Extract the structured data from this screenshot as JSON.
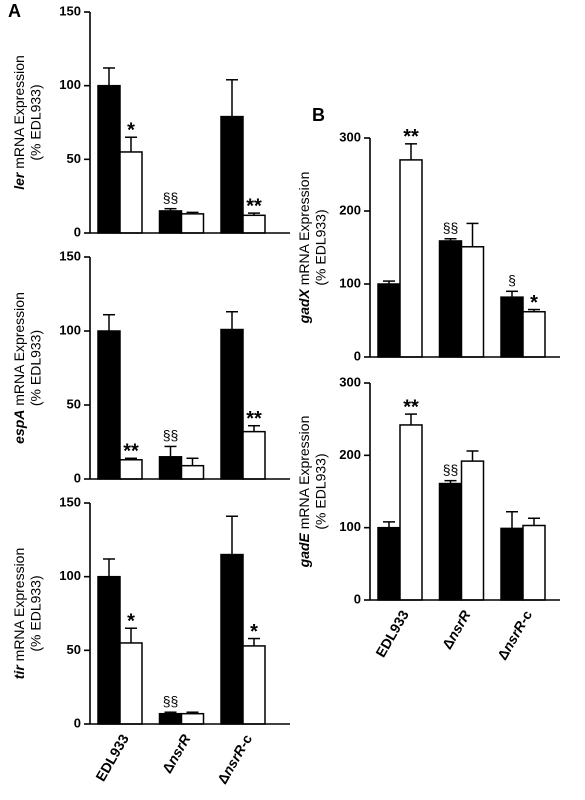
{
  "panel_labels": [
    "A",
    "B"
  ],
  "chart_data": [
    {
      "type": "bar",
      "ylabel_gene": "ler",
      "ylabel": "mRNA Expression",
      "ylabel2": "(% EDL933)",
      "categories": [
        null,
        null,
        null
      ],
      "ylim": [
        0,
        150
      ],
      "yticks": [
        0,
        50,
        100,
        150
      ],
      "series": [
        {
          "color": "#000000",
          "values": [
            100,
            15,
            79
          ],
          "errors": [
            12,
            1.5,
            25
          ]
        },
        {
          "color": "#ffffff",
          "values": [
            55,
            13,
            12
          ],
          "errors": [
            10,
            1,
            1.5
          ]
        }
      ],
      "annotations": [
        {
          "text": "*",
          "series": 1,
          "index": 0
        },
        {
          "text": "§§",
          "series": 0,
          "index": 1
        },
        {
          "text": "**",
          "series": 1,
          "index": 2
        }
      ]
    },
    {
      "type": "bar",
      "ylabel_gene": "espA",
      "ylabel": "mRNA Expression",
      "ylabel2": "(% EDL933)",
      "categories": [
        null,
        null,
        null
      ],
      "ylim": [
        0,
        150
      ],
      "yticks": [
        0,
        50,
        100,
        150
      ],
      "series": [
        {
          "color": "#000000",
          "values": [
            100,
            15,
            101
          ],
          "errors": [
            11,
            7,
            12
          ]
        },
        {
          "color": "#ffffff",
          "values": [
            13,
            9,
            32
          ],
          "errors": [
            1,
            5,
            4
          ]
        }
      ],
      "annotations": [
        {
          "text": "**",
          "series": 1,
          "index": 0
        },
        {
          "text": "§§",
          "series": 0,
          "index": 1
        },
        {
          "text": "**",
          "series": 1,
          "index": 2
        }
      ]
    },
    {
      "type": "bar",
      "ylabel_gene": "tir",
      "ylabel": "mRNA Expression",
      "ylabel2": "(% EDL933)",
      "categories": [
        "EDL933",
        "ΔnsrR",
        "ΔnsrR-c"
      ],
      "ylim": [
        0,
        150
      ],
      "yticks": [
        0,
        50,
        100,
        150
      ],
      "series": [
        {
          "color": "#000000",
          "values": [
            100,
            7,
            115
          ],
          "errors": [
            12,
            1,
            26
          ]
        },
        {
          "color": "#ffffff",
          "values": [
            55,
            7,
            53
          ],
          "errors": [
            10,
            1,
            5
          ]
        }
      ],
      "annotations": [
        {
          "text": "*",
          "series": 1,
          "index": 0
        },
        {
          "text": "§§",
          "series": 0,
          "index": 1
        },
        {
          "text": "*",
          "series": 1,
          "index": 2
        }
      ]
    },
    {
      "type": "bar",
      "ylabel_gene": "gadX",
      "ylabel": "mRNA Expression",
      "ylabel2": "(% EDL933)",
      "categories": [
        null,
        null,
        null
      ],
      "ylim": [
        0,
        300
      ],
      "yticks": [
        0,
        100,
        200,
        300
      ],
      "series": [
        {
          "color": "#000000",
          "values": [
            100,
            159,
            82
          ],
          "errors": [
            4,
            3,
            8
          ]
        },
        {
          "color": "#ffffff",
          "values": [
            270,
            151,
            62
          ],
          "errors": [
            22,
            32,
            3
          ]
        }
      ],
      "annotations": [
        {
          "text": "**",
          "series": 1,
          "index": 0
        },
        {
          "text": "§§",
          "series": 0,
          "index": 1
        },
        {
          "text": "§",
          "series": 0,
          "index": 2
        },
        {
          "text": "*",
          "series": 1,
          "index": 2
        }
      ]
    },
    {
      "type": "bar",
      "ylabel_gene": "gadE",
      "ylabel": "mRNA Expression",
      "ylabel2": "(% EDL933)",
      "categories": [
        "EDL933",
        "ΔnsrR",
        "ΔnsrR-c"
      ],
      "ylim": [
        0,
        300
      ],
      "yticks": [
        0,
        100,
        200,
        300
      ],
      "series": [
        {
          "color": "#000000",
          "values": [
            100,
            161,
            99
          ],
          "errors": [
            8,
            4,
            23
          ]
        },
        {
          "color": "#ffffff",
          "values": [
            242,
            192,
            103
          ],
          "errors": [
            15,
            14,
            10
          ]
        }
      ],
      "annotations": [
        {
          "text": "**",
          "series": 1,
          "index": 0
        },
        {
          "text": "§§",
          "series": 0,
          "index": 1
        }
      ]
    }
  ]
}
